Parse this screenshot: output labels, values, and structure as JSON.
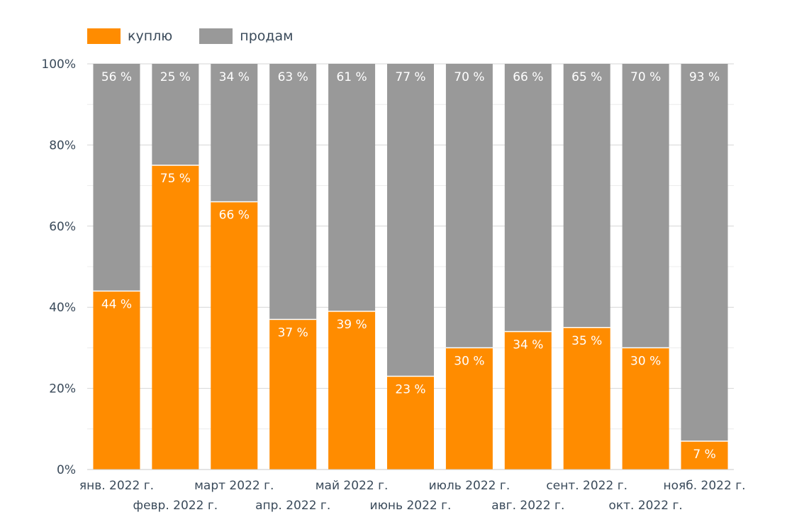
{
  "chart_data": {
    "type": "bar",
    "stacked": true,
    "categories": [
      "янв. 2022 г.",
      "февр. 2022 г.",
      "март 2022 г.",
      "апр. 2022 г.",
      "май 2022 г.",
      "июнь 2022 г.",
      "июль 2022 г.",
      "авг. 2022 г.",
      "сент. 2022 г.",
      "окт. 2022 г.",
      "нояб. 2022 г."
    ],
    "series": [
      {
        "name": "куплю",
        "color": "#ff8c00",
        "values": [
          44,
          75,
          66,
          37,
          39,
          23,
          30,
          34,
          35,
          30,
          7
        ]
      },
      {
        "name": "продам",
        "color": "#999999",
        "values": [
          56,
          25,
          34,
          63,
          61,
          77,
          70,
          66,
          65,
          70,
          93
        ]
      }
    ],
    "data_labels": true,
    "label_suffix": " %",
    "ylim": [
      0,
      100
    ],
    "yticks": [
      "0%",
      "20%",
      "40%",
      "60%",
      "80%",
      "100%"
    ],
    "grid": true,
    "legend_position": "top-left",
    "title": "",
    "xlabel": "",
    "ylabel": ""
  }
}
